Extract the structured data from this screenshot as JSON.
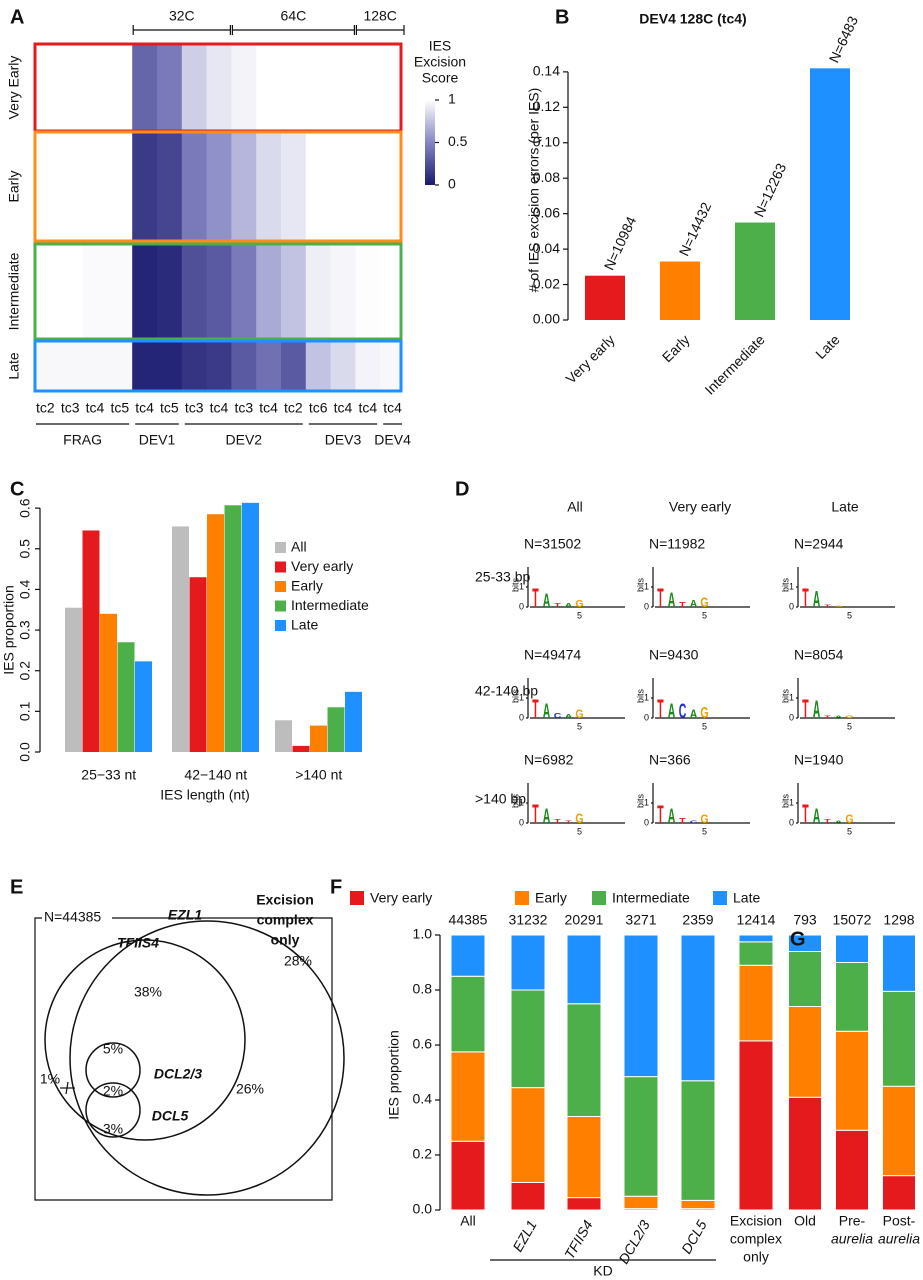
{
  "chart_data": [
    {
      "type": "heatmap",
      "panel": "A",
      "columns": [
        "tc2",
        "tc3",
        "tc4",
        "tc5",
        "tc4",
        "tc5",
        "tc3",
        "tc4",
        "tc3",
        "tc4",
        "tc2",
        "tc6",
        "tc4",
        "tc4",
        "tc4"
      ],
      "column_groups": [
        {
          "label": "FRAG",
          "from": 0,
          "to": 3
        },
        {
          "label": "DEV1",
          "from": 4,
          "to": 5
        },
        {
          "label": "DEV2",
          "from": 6,
          "to": 10
        },
        {
          "label": "DEV3",
          "from": 11,
          "to": 13
        },
        {
          "label": "DEV4",
          "from": 14,
          "to": 14
        }
      ],
      "top_groups": [
        {
          "label": "32C",
          "from": 4,
          "to": 7
        },
        {
          "label": "64C",
          "from": 8,
          "to": 12
        },
        {
          "label": "128C",
          "from": 13,
          "to": 14
        }
      ],
      "rows": [
        "Very Early",
        "Early",
        "Intermediate",
        "Late"
      ],
      "row_colors": [
        "#e41a1c",
        "#ff8c1a",
        "#4daf4a",
        "#1e90ff"
      ],
      "values": [
        [
          1,
          1,
          1,
          1,
          0.35,
          0.45,
          0.8,
          0.9,
          0.95,
          1,
          1,
          1,
          1,
          1,
          1
        ],
        [
          1,
          1,
          1,
          1,
          0.15,
          0.2,
          0.45,
          0.55,
          0.7,
          0.85,
          0.9,
          1,
          1,
          1,
          1
        ],
        [
          1,
          1,
          0.98,
          0.98,
          0.05,
          0.08,
          0.25,
          0.3,
          0.45,
          0.65,
          0.75,
          0.93,
          0.96,
          0.99,
          1
        ],
        [
          0.97,
          0.97,
          0.97,
          0.97,
          0.05,
          0.05,
          0.12,
          0.15,
          0.3,
          0.4,
          0.3,
          0.75,
          0.85,
          0.95,
          0.97
        ]
      ],
      "colorbar_title": [
        "IES",
        "Excision",
        "Score"
      ],
      "zlim": [
        0,
        1
      ],
      "colorbar_ticks": [
        0,
        0.5,
        1
      ]
    },
    {
      "type": "bar",
      "panel": "B",
      "title": "DEV4 128C (tc4)",
      "ylabel": "# of IES excision errors (per IES)",
      "categories": [
        "Very early",
        "Early",
        "Intermediate",
        "Late"
      ],
      "values": [
        0.025,
        0.033,
        0.055,
        0.142
      ],
      "n_labels": [
        "N=10984",
        "N=14432",
        "N=12263",
        "N=6483"
      ],
      "colors": [
        "#e41a1c",
        "#ff7f00",
        "#4daf4a",
        "#1e90ff"
      ],
      "ylim": [
        0,
        0.145
      ],
      "yticks": [
        {
          "value": 0,
          "label": "0.00"
        },
        {
          "value": 0.02,
          "label": "0.02"
        },
        {
          "value": 0.04,
          "label": "0.04"
        },
        {
          "value": 0.06,
          "label": "0.06"
        },
        {
          "value": 0.08,
          "label": "0.08"
        },
        {
          "value": 0.1,
          "label": "0.10"
        },
        {
          "value": 0.12,
          "label": "0.12"
        },
        {
          "value": 0.14,
          "label": "0.14"
        }
      ]
    },
    {
      "type": "grouped_bar",
      "panel": "C",
      "ylabel": "IES proportion",
      "xlabel": "IES length (nt)",
      "categories": [
        "25−33 nt",
        "42−140 nt",
        ">140 nt"
      ],
      "series": [
        {
          "name": "All",
          "color": "#bdbdbd",
          "values": [
            0.355,
            0.555,
            0.078
          ]
        },
        {
          "name": "Very early",
          "color": "#e41a1c",
          "values": [
            0.545,
            0.43,
            0.015
          ]
        },
        {
          "name": "Early",
          "color": "#ff7f00",
          "values": [
            0.34,
            0.585,
            0.065
          ]
        },
        {
          "name": "Intermediate",
          "color": "#4daf4a",
          "values": [
            0.27,
            0.607,
            0.11
          ]
        },
        {
          "name": "Late",
          "color": "#1e90ff",
          "values": [
            0.223,
            0.613,
            0.148
          ]
        }
      ],
      "ylim": [
        0,
        0.62
      ],
      "yticks": [
        {
          "value": 0,
          "label": "0.0"
        },
        0.1,
        0.2,
        0.3,
        0.4,
        0.5,
        0.6
      ]
    },
    {
      "type": "logo_grid",
      "panel": "D",
      "columns": [
        "All",
        "Very early",
        "Late"
      ],
      "rows": [
        "25-33 bp",
        "42-140 bp",
        ">140 bp"
      ],
      "y_label": "bits",
      "yticks": [
        0,
        1
      ],
      "x_tick": 5,
      "letter_colors": {
        "T": "#e41a1c",
        "A": "#1a8a1a",
        "C": "#2233cc",
        "G": "#f0a000"
      },
      "logos": [
        [
          {
            "n": "N=31502",
            "letters": [
              [
                "T",
                1.4
              ],
              [
                "A",
                1.0
              ],
              [
                "T",
                0.3
              ],
              [
                "A",
                0.3
              ],
              [
                "G",
                0.5
              ]
            ]
          },
          {
            "n": "N=11982",
            "letters": [
              [
                "T",
                1.4
              ],
              [
                "A",
                1.1
              ],
              [
                "T",
                0.4
              ],
              [
                "A",
                0.5
              ],
              [
                "G",
                0.7
              ]
            ]
          },
          {
            "n": "N=2944",
            "letters": [
              [
                "T",
                1.4
              ],
              [
                "A",
                1.2
              ],
              [
                "T",
                0.2
              ],
              [
                "G",
                0.1
              ]
            ]
          }
        ],
        [
          {
            "n": "N=49474",
            "letters": [
              [
                "T",
                1.4
              ],
              [
                "A",
                1.1
              ],
              [
                "C",
                0.4
              ],
              [
                "A",
                0.3
              ],
              [
                "G",
                0.6
              ]
            ]
          },
          {
            "n": "N=9430",
            "letters": [
              [
                "T",
                1.4
              ],
              [
                "A",
                1.1
              ],
              [
                "C",
                1.1
              ],
              [
                "A",
                0.6
              ],
              [
                "G",
                0.8
              ]
            ]
          },
          {
            "n": "N=8054",
            "letters": [
              [
                "T",
                1.4
              ],
              [
                "A",
                1.3
              ],
              [
                "T",
                0.2
              ],
              [
                "A",
                0.2
              ],
              [
                "G",
                0.2
              ]
            ]
          }
        ],
        [
          {
            "n": "N=6982",
            "letters": [
              [
                "T",
                1.4
              ],
              [
                "A",
                1.1
              ],
              [
                "T",
                0.3
              ],
              [
                "T",
                0.2
              ],
              [
                "G",
                0.7
              ]
            ]
          },
          {
            "n": "N=366",
            "letters": [
              [
                "T",
                1.3
              ],
              [
                "A",
                1.1
              ],
              [
                "T",
                0.4
              ],
              [
                "C",
                0.2
              ],
              [
                "G",
                0.6
              ]
            ]
          },
          {
            "n": "N=1940",
            "letters": [
              [
                "T",
                1.4
              ],
              [
                "A",
                1.1
              ],
              [
                "T",
                0.3
              ],
              [
                "A",
                0.2
              ],
              [
                "G",
                0.6
              ]
            ]
          }
        ]
      ]
    },
    {
      "type": "venn",
      "panel": "E",
      "total": "N=44385",
      "sets": [
        "EZL1",
        "TFIIS4",
        "DCL2/3",
        "DCL5"
      ],
      "only_label": [
        "Excision",
        "complex",
        "only"
      ],
      "values": [
        28,
        26,
        38,
        5,
        2,
        3,
        1
      ],
      "value_labels": [
        "28%",
        "26%",
        "38%",
        "5%",
        "2%",
        "3%",
        "1%"
      ]
    },
    {
      "type": "stacked_bar",
      "panel": "F",
      "ylabel": "IES proportion",
      "group_label": "KD",
      "categories": [
        [
          "All"
        ],
        [
          "EZL1"
        ],
        [
          "TFIIS4"
        ],
        [
          "DCL2/3"
        ],
        [
          "DCL5"
        ],
        [
          "Excision",
          "complex",
          "only"
        ]
      ],
      "italic": [
        false,
        true,
        true,
        true,
        true,
        false
      ],
      "n_labels": [
        "44385",
        "31232",
        "20291",
        "3271",
        "2359",
        "12414"
      ],
      "series": [
        {
          "name": "Very early",
          "color": "#e41a1c",
          "values": [
            0.25,
            0.1,
            0.045,
            0.005,
            0.005,
            0.615
          ]
        },
        {
          "name": "Early",
          "color": "#ff7f00",
          "values": [
            0.325,
            0.345,
            0.295,
            0.045,
            0.03,
            0.275
          ]
        },
        {
          "name": "Intermediate",
          "color": "#4daf4a",
          "values": [
            0.275,
            0.355,
            0.41,
            0.435,
            0.435,
            0.085
          ]
        },
        {
          "name": "Late",
          "color": "#1e90ff",
          "values": [
            0.15,
            0.2,
            0.25,
            0.515,
            0.53,
            0.025
          ]
        }
      ],
      "ylim": [
        0,
        1
      ],
      "yticks": [
        {
          "value": 0,
          "label": "0.0"
        },
        0.2,
        0.4,
        0.6,
        0.8,
        {
          "value": 1,
          "label": "1.0"
        }
      ]
    },
    {
      "type": "stacked_bar_plain",
      "panel": "G",
      "categories": [
        [
          "Old"
        ],
        [
          "Pre-",
          "aurelia"
        ],
        [
          "Post-",
          "aurelia"
        ]
      ],
      "n_labels": [
        "793",
        "15072",
        "1298"
      ],
      "series": [
        {
          "color": "#e41a1c",
          "values": [
            0.41,
            0.29,
            0.125
          ]
        },
        {
          "color": "#ff7f00",
          "values": [
            0.33,
            0.36,
            0.325
          ]
        },
        {
          "color": "#4daf4a",
          "values": [
            0.2,
            0.25,
            0.345
          ]
        },
        {
          "color": "#1e90ff",
          "values": [
            0.06,
            0.1,
            0.205
          ]
        }
      ],
      "ylim": [
        0,
        1
      ]
    }
  ]
}
